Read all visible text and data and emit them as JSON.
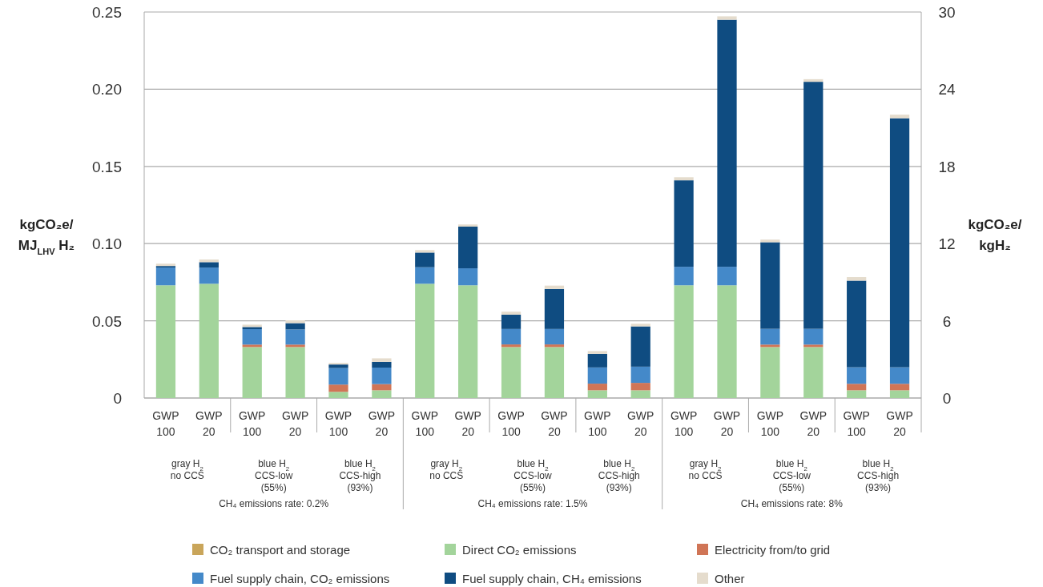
{
  "chart_data": {
    "type": "bar",
    "stacked": true,
    "categories": [
      "GWP 100",
      "GWP 20",
      "GWP 100",
      "GWP 20",
      "GWP 100",
      "GWP 20",
      "GWP 100",
      "GWP 20",
      "GWP 100",
      "GWP 20",
      "GWP 100",
      "GWP 20",
      "GWP 100",
      "GWP 20",
      "GWP 100",
      "GWP 20",
      "GWP 100",
      "GWP 20"
    ],
    "ylabel": "kgCO₂e/\nMJ$_{LHV}$ H₂",
    "y2label": "kgCO₂e/\nkgH₂",
    "ylim": [
      0,
      0.25
    ],
    "yticks": [
      0,
      0.05,
      {
        "value": 0.1,
        "label": "0.10"
      },
      0.15,
      {
        "value": 0.2,
        "label": "0.20"
      },
      0.25
    ],
    "y2lim": [
      0,
      30
    ],
    "y2ticks": [
      0,
      6,
      12,
      18,
      24,
      30
    ],
    "grid": "y",
    "legend": "bottom",
    "series": [
      {
        "name": "Direct CO₂ emissions",
        "color": "#a3d49b",
        "values": [
          0.073,
          0.074,
          0.033,
          0.033,
          0.004,
          0.005,
          0.074,
          0.073,
          0.033,
          0.033,
          0.005,
          0.005,
          0.073,
          0.073,
          0.033,
          0.033,
          0.005,
          0.005
        ]
      },
      {
        "name": "Electricity from/to grid",
        "color": "#d07556",
        "values": [
          0,
          0,
          0.0016,
          0.0016,
          0.0047,
          0.004,
          0,
          0,
          0.0017,
          0.0017,
          0.0043,
          0.0048,
          0,
          0,
          0.0016,
          0.0016,
          0.0042,
          0.0042
        ]
      },
      {
        "name": "CO₂ transport and storage",
        "color": "#c9a55a",
        "values": [
          0,
          0,
          0,
          0,
          0,
          0,
          0,
          0,
          0,
          0,
          0,
          0,
          0,
          0,
          0,
          0,
          0,
          0
        ]
      },
      {
        "name": "Fuel supply chain, CO₂ emissions",
        "color": "#4489c9",
        "values": [
          0.0115,
          0.0105,
          0.01,
          0.0098,
          0.0107,
          0.0107,
          0.0107,
          0.011,
          0.01,
          0.01,
          0.0105,
          0.0105,
          0.012,
          0.012,
          0.0102,
          0.0102,
          0.0107,
          0.0107
        ]
      },
      {
        "name": "Fuel supply chain, CH₄ emissions",
        "color": "#0f4c81",
        "values": [
          0.001,
          0.0035,
          0.0014,
          0.0041,
          0.0023,
          0.0037,
          0.0095,
          0.027,
          0.0093,
          0.0259,
          0.0088,
          0.0261,
          0.056,
          0.16,
          0.0561,
          0.16,
          0.0561,
          0.1613
        ]
      },
      {
        "name": "Other",
        "color": "#e5dccd",
        "values": [
          0.0015,
          0.0017,
          0.0015,
          0.0018,
          0.001,
          0.0023,
          0.0016,
          0.0014,
          0.0019,
          0.0022,
          0.0018,
          0.0017,
          0.002,
          0.0022,
          0.0017,
          0.0017,
          0.0023,
          0.0023
        ]
      }
    ],
    "annotations": [
      "gray H$_{2}$\nno CCS",
      "blue H$_{2}$\nCCS-low\n(55%)",
      "blue H$_{2}$\nCCS-high\n(93%)",
      "gray H$_{2}$\nno CCS",
      "blue H$_{2}$\nCCS-low\n(55%)",
      "blue H$_{2}$\nCCS-high\n(93%)",
      "gray H$_{2}$\nno CCS",
      "blue H$_{2}$\nCCS-low\n(55%)",
      "blue H$_{2}$\nCCS-high\n(93%)",
      "CH₄ emissions rate: 0.2%",
      "CH₄ emissions rate: 1.5%",
      "CH₄ emissions rate: 8%"
    ]
  }
}
